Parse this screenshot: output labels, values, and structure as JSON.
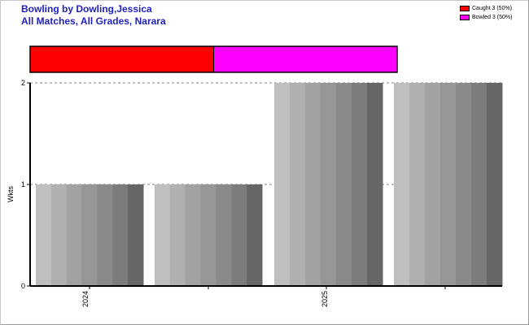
{
  "header": {
    "title_line1": "Bowling by Dowling,Jessica",
    "title_line2": "All Matches, All Grades, Narara"
  },
  "legend": [
    {
      "label": "Caught 3 (50%)",
      "color": "#ff0000"
    },
    {
      "label": "Bowled 3 (50%)",
      "color": "#ff00ff"
    }
  ],
  "chart_data": [
    {
      "type": "bar",
      "categories": [
        "Caught",
        "Bowled"
      ],
      "values": [
        3,
        3
      ],
      "colors": [
        "#ff0000",
        "#ff00ff"
      ],
      "orientation": "stacked-horizontal"
    },
    {
      "type": "bar",
      "x_ticks": [
        "2024",
        "2025"
      ],
      "values": [
        1,
        1,
        2,
        2
      ],
      "title": "",
      "xlabel": "",
      "ylabel": "Wkts",
      "ylim": [
        0,
        2
      ],
      "yticks": [
        0,
        1,
        2
      ],
      "grid": true
    }
  ]
}
